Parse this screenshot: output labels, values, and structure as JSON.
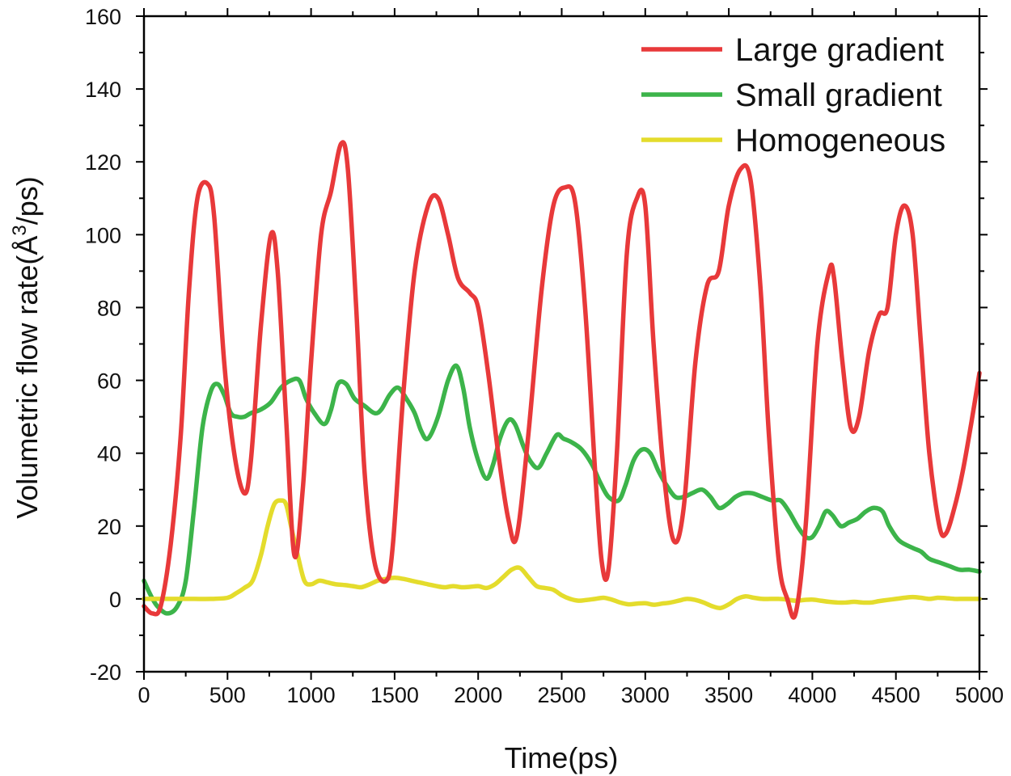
{
  "chart_data": {
    "type": "line",
    "title": "",
    "xlabel": "Time(ps)",
    "ylabel": "Volumetric flow rate(Å³/ps)",
    "ylabel_parts": {
      "pre": "Volumetric flow rate(Å",
      "sup": "3",
      "post": "/ps)"
    },
    "xlim": [
      0,
      5000
    ],
    "ylim": [
      -20,
      160
    ],
    "xticks": [
      0,
      500,
      1000,
      1500,
      2000,
      2500,
      3000,
      3500,
      4000,
      4500,
      5000
    ],
    "yticks": [
      -20,
      0,
      20,
      40,
      60,
      80,
      100,
      120,
      140,
      160
    ],
    "x_minor_step": 250,
    "y_minor_step": 10,
    "grid": false,
    "legend_position": "top-right",
    "series": [
      {
        "name": "Large gradient",
        "color": "#e8393a",
        "x": [
          0,
          50,
          100,
          160,
          220,
          270,
          320,
          380,
          420,
          480,
          540,
          600,
          640,
          700,
          760,
          800,
          850,
          900,
          950,
          1000,
          1060,
          1120,
          1180,
          1220,
          1270,
          1320,
          1380,
          1450,
          1490,
          1550,
          1620,
          1700,
          1760,
          1820,
          1880,
          1950,
          2000,
          2060,
          2120,
          2180,
          2230,
          2300,
          2380,
          2450,
          2520,
          2580,
          2640,
          2700,
          2740,
          2780,
          2830,
          2890,
          2950,
          3000,
          3050,
          3110,
          3170,
          3230,
          3300,
          3370,
          3440,
          3500,
          3570,
          3630,
          3690,
          3740,
          3800,
          3850,
          3900,
          3960,
          4030,
          4100,
          4130,
          4180,
          4230,
          4280,
          4340,
          4400,
          4450,
          4500,
          4550,
          4600,
          4650,
          4700,
          4760,
          4800,
          4850,
          4900,
          4950,
          5000
        ],
        "y": [
          -2,
          -4,
          -2,
          15,
          45,
          85,
          110,
          114,
          105,
          65,
          40,
          29,
          38,
          75,
          100,
          90,
          50,
          12,
          30,
          65,
          100,
          112,
          125,
          118,
          80,
          35,
          10,
          5,
          15,
          55,
          90,
          108,
          110,
          100,
          88,
          84,
          80,
          62,
          40,
          22,
          17,
          45,
          85,
          108,
          113,
          109,
          80,
          35,
          10,
          8,
          40,
          95,
          110,
          108,
          70,
          35,
          16,
          25,
          65,
          86,
          90,
          108,
          118,
          115,
          85,
          45,
          10,
          0,
          -4,
          20,
          70,
          90,
          88,
          65,
          47,
          50,
          68,
          78,
          80,
          100,
          108,
          100,
          70,
          40,
          20,
          18,
          25,
          35,
          48,
          62
        ]
      },
      {
        "name": "Small gradient",
        "color": "#3cb44a",
        "x": [
          0,
          40,
          80,
          140,
          200,
          250,
          300,
          350,
          400,
          440,
          480,
          520,
          560,
          600,
          640,
          700,
          760,
          820,
          880,
          930,
          970,
          1020,
          1080,
          1120,
          1160,
          1210,
          1260,
          1320,
          1380,
          1420,
          1470,
          1520,
          1570,
          1620,
          1660,
          1700,
          1760,
          1820,
          1870,
          1910,
          1950,
          2000,
          2050,
          2090,
          2130,
          2180,
          2220,
          2270,
          2310,
          2360,
          2410,
          2470,
          2510,
          2560,
          2620,
          2680,
          2730,
          2780,
          2840,
          2880,
          2930,
          2980,
          3030,
          3080,
          3130,
          3180,
          3230,
          3280,
          3340,
          3390,
          3440,
          3490,
          3540,
          3590,
          3640,
          3700,
          3760,
          3810,
          3860,
          3910,
          3960,
          4000,
          4040,
          4080,
          4120,
          4170,
          4220,
          4270,
          4320,
          4370,
          4420,
          4460,
          4520,
          4600,
          4650,
          4700,
          4760,
          4820,
          4880,
          4940,
          5000
        ],
        "y": [
          5,
          1,
          -2,
          -4,
          -2,
          5,
          25,
          47,
          57,
          59,
          56,
          51,
          50,
          50,
          51,
          52,
          54,
          58,
          60,
          60,
          55,
          51,
          48,
          52,
          59,
          59,
          55,
          53,
          51,
          52,
          56,
          58,
          55,
          51,
          46,
          44,
          50,
          60,
          64,
          58,
          47,
          38,
          33,
          37,
          44,
          49,
          48,
          42,
          38,
          36,
          40,
          45,
          44,
          43,
          41,
          37,
          32,
          28,
          27,
          31,
          38,
          41,
          40,
          35,
          31,
          28,
          28,
          29,
          30,
          28,
          25,
          26,
          28,
          29,
          29,
          28,
          27,
          27,
          24,
          20,
          17,
          17,
          20,
          24,
          23,
          20,
          21,
          22,
          24,
          25,
          24,
          20,
          16,
          14,
          13,
          11,
          10,
          9,
          8,
          8,
          7.5
        ]
      },
      {
        "name": "Homogeneous",
        "color": "#e4dc2c",
        "x": [
          0,
          100,
          200,
          300,
          400,
          500,
          550,
          600,
          650,
          700,
          740,
          780,
          820,
          850,
          880,
          920,
          960,
          1000,
          1050,
          1100,
          1150,
          1200,
          1250,
          1300,
          1350,
          1400,
          1450,
          1500,
          1550,
          1600,
          1650,
          1700,
          1750,
          1800,
          1850,
          1900,
          1950,
          2000,
          2050,
          2100,
          2150,
          2200,
          2250,
          2300,
          2350,
          2400,
          2450,
          2500,
          2550,
          2600,
          2650,
          2700,
          2750,
          2800,
          2850,
          2900,
          2950,
          3000,
          3050,
          3100,
          3150,
          3200,
          3250,
          3300,
          3350,
          3400,
          3450,
          3500,
          3550,
          3600,
          3650,
          3700,
          3750,
          3800,
          3850,
          3900,
          3950,
          4000,
          4050,
          4100,
          4150,
          4200,
          4250,
          4300,
          4350,
          4400,
          4450,
          4500,
          4550,
          4600,
          4650,
          4700,
          4750,
          4800,
          4850,
          4900,
          4950,
          5000
        ],
        "y": [
          0,
          0,
          0,
          0,
          0,
          0.3,
          1.5,
          3,
          5,
          12,
          20,
          26,
          27,
          26,
          20,
          12,
          5,
          4,
          5,
          4.5,
          4,
          3.8,
          3.5,
          3.2,
          4,
          5,
          5.5,
          5.8,
          5.5,
          5,
          4.5,
          4,
          3.5,
          3.2,
          3.5,
          3.2,
          3.3,
          3.5,
          3,
          4,
          6,
          8,
          8.5,
          6,
          3.5,
          3,
          2.5,
          1,
          0,
          -0.5,
          -0.3,
          0,
          0.3,
          -0.2,
          -1,
          -1.5,
          -1.3,
          -1.2,
          -1.6,
          -1.3,
          -1,
          -0.5,
          0,
          -0.3,
          -1,
          -2,
          -2.5,
          -1.5,
          0,
          0.7,
          0.3,
          0,
          0,
          0,
          -0.2,
          -0.5,
          -0.3,
          -0.2,
          -0.5,
          -0.8,
          -1,
          -1,
          -0.8,
          -1,
          -1,
          -0.6,
          -0.3,
          0,
          0.3,
          0.5,
          0.3,
          0,
          0.3,
          0.2,
          0,
          0,
          0,
          0
        ]
      }
    ]
  }
}
